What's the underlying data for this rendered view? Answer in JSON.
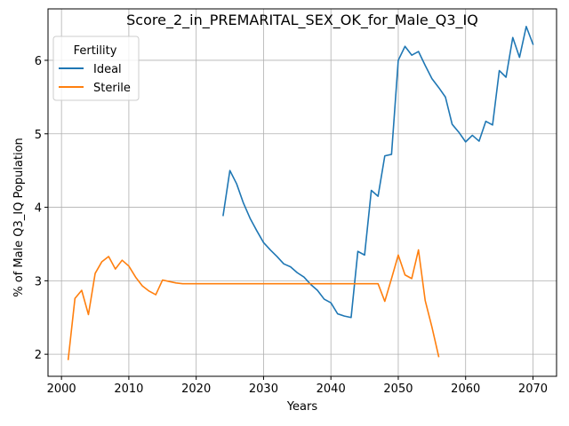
{
  "chart_data": {
    "type": "line",
    "title": "Score_2_in_PREMARITAL_SEX_OK_for_Male_Q3_IQ",
    "xlabel": "Years",
    "ylabel": "% of Male Q3_IQ Population",
    "xlim": [
      1998,
      2073.5
    ],
    "ylim": [
      1.7,
      6.7
    ],
    "x_ticks": [
      2000,
      2010,
      2020,
      2030,
      2040,
      2050,
      2060,
      2070
    ],
    "y_ticks": [
      2,
      3,
      4,
      5,
      6
    ],
    "grid": true,
    "legend": {
      "title": "Fertility",
      "placement": "upper-left",
      "entries": [
        "Ideal",
        "Sterile"
      ]
    },
    "series": [
      {
        "name": "Ideal",
        "color": "#1f77b4",
        "x": [
          2024,
          2025,
          2026,
          2027,
          2028,
          2029,
          2030,
          2031,
          2032,
          2033,
          2034,
          2035,
          2036,
          2037,
          2038,
          2039,
          2040,
          2041,
          2042,
          2043,
          2044,
          2045,
          2046,
          2047,
          2048,
          2049,
          2050,
          2051,
          2052,
          2053,
          2054,
          2055,
          2056,
          2057,
          2058,
          2059,
          2060,
          2061,
          2062,
          2063,
          2064,
          2065,
          2066,
          2067,
          2068,
          2069,
          2070
        ],
        "y": [
          3.89,
          4.5,
          4.32,
          4.06,
          3.85,
          3.68,
          3.52,
          3.42,
          3.33,
          3.23,
          3.19,
          3.11,
          3.05,
          2.95,
          2.87,
          2.75,
          2.7,
          2.55,
          2.52,
          2.5,
          3.4,
          3.35,
          4.23,
          4.15,
          4.7,
          4.72,
          6.0,
          6.19,
          6.07,
          6.12,
          5.93,
          5.75,
          5.63,
          5.5,
          5.13,
          5.02,
          4.89,
          4.98,
          4.9,
          5.17,
          5.12,
          5.86,
          5.77,
          6.31,
          6.04,
          6.46,
          6.22
        ]
      },
      {
        "name": "Sterile",
        "color": "#ff7f0e",
        "x": [
          2001,
          2002,
          2003,
          2004,
          2005,
          2006,
          2007,
          2008,
          2009,
          2010,
          2011,
          2012,
          2013,
          2014,
          2015,
          2016,
          2017,
          2018,
          2019,
          2020,
          2021,
          2022,
          2023,
          2024,
          2025,
          2026,
          2027,
          2028,
          2029,
          2030,
          2031,
          2032,
          2033,
          2034,
          2035,
          2036,
          2037,
          2038,
          2039,
          2040,
          2041,
          2042,
          2043,
          2044,
          2045,
          2046,
          2047,
          2048,
          2049,
          2050,
          2051,
          2052,
          2053,
          2054,
          2055,
          2056
        ],
        "y": [
          1.93,
          2.76,
          2.87,
          2.54,
          3.1,
          3.26,
          3.33,
          3.16,
          3.28,
          3.2,
          3.05,
          2.93,
          2.86,
          2.81,
          3.01,
          2.99,
          2.97,
          2.96,
          2.96,
          2.96,
          2.96,
          2.96,
          2.96,
          2.96,
          2.96,
          2.96,
          2.96,
          2.96,
          2.96,
          2.96,
          2.96,
          2.96,
          2.96,
          2.96,
          2.96,
          2.96,
          2.96,
          2.96,
          2.96,
          2.96,
          2.96,
          2.96,
          2.96,
          2.96,
          2.96,
          2.96,
          2.96,
          2.72,
          3.03,
          3.35,
          3.08,
          3.03,
          3.42,
          2.73,
          2.37,
          1.97
        ]
      }
    ]
  }
}
